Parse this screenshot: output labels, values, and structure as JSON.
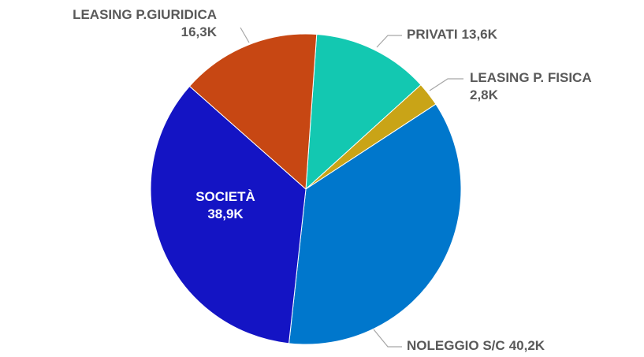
{
  "chart_data": {
    "type": "pie",
    "categories": [
      "PRIVATI",
      "LEASING P. FISICA",
      "NOLEGGIO S/C",
      "SOCIETÀ",
      "LEASING P.GIURIDICA"
    ],
    "values": [
      13600,
      2800,
      40200,
      38900,
      16300
    ],
    "value_labels": [
      "13,6K",
      "2,8K",
      "40,2K",
      "38,9K",
      "16,3K"
    ],
    "colors": [
      "#13c8b1",
      "#c9a417",
      "#0077cc",
      "#1414c4",
      "#c74713"
    ]
  }
}
